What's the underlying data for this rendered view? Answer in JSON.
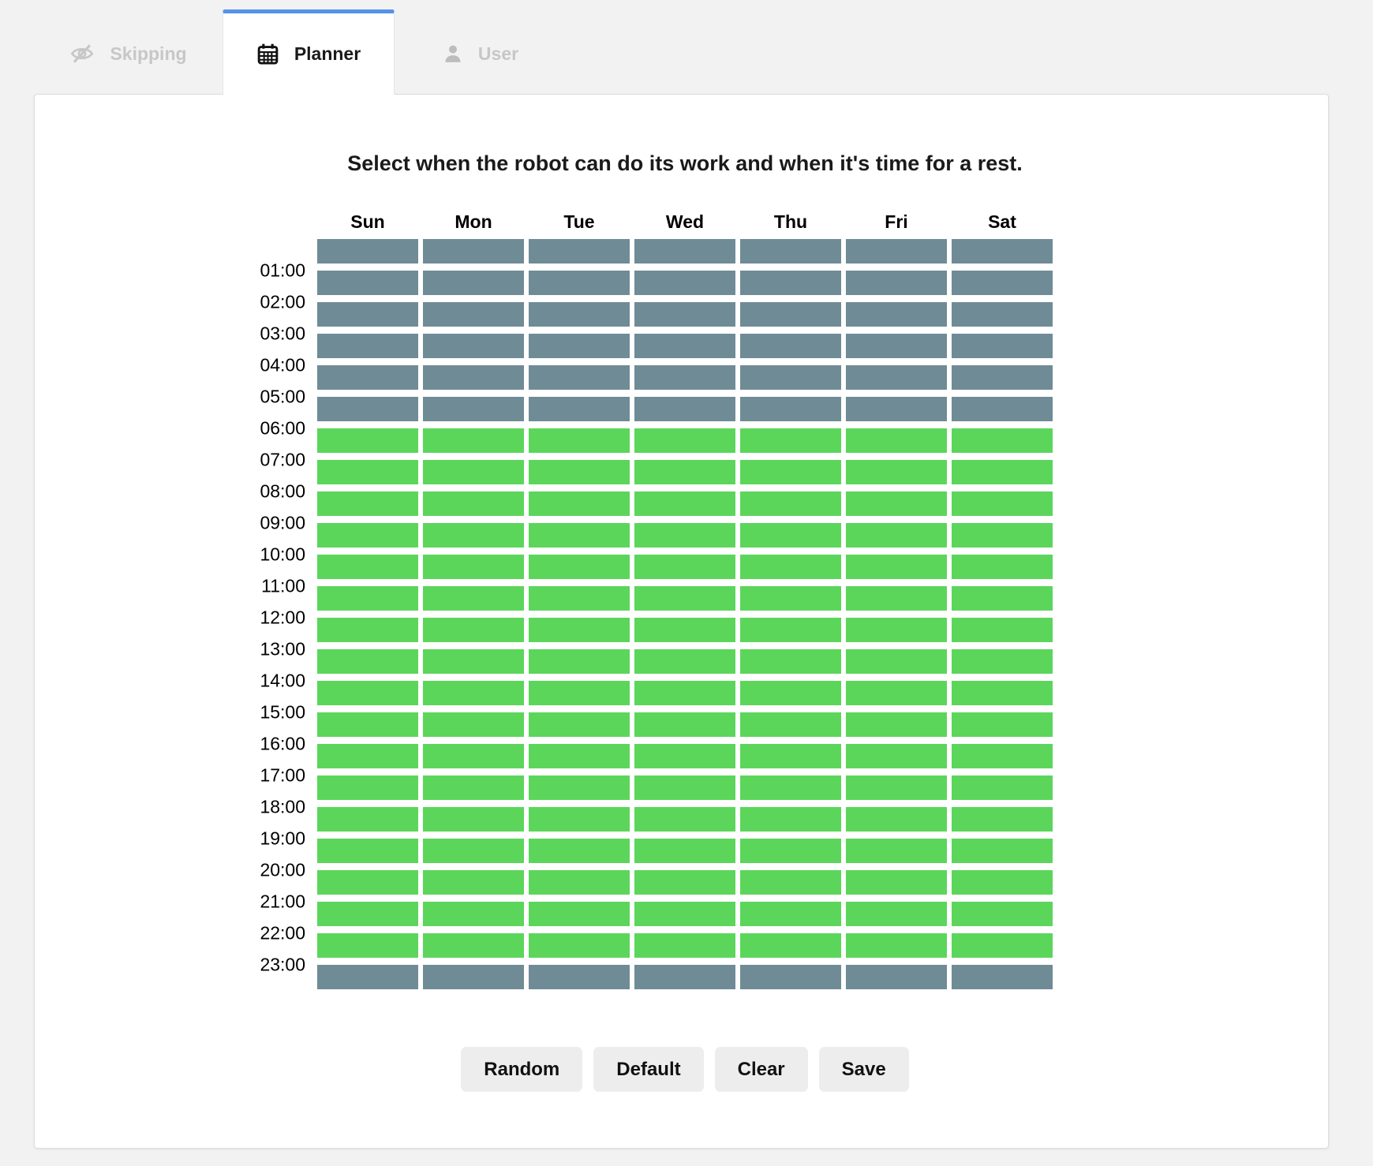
{
  "tabs": [
    {
      "label": "Skipping",
      "icon": "eye-slash-icon",
      "active": false
    },
    {
      "label": "Planner",
      "icon": "calendar-icon",
      "active": true
    },
    {
      "label": "User",
      "icon": "user-icon",
      "active": false
    }
  ],
  "planner": {
    "title": "Select when the robot can do its work and when it's time for a rest.",
    "days": [
      "Sun",
      "Mon",
      "Tue",
      "Wed",
      "Thu",
      "Fri",
      "Sat"
    ],
    "hour_labels": [
      "01:00",
      "02:00",
      "03:00",
      "04:00",
      "05:00",
      "06:00",
      "07:00",
      "08:00",
      "09:00",
      "10:00",
      "11:00",
      "12:00",
      "13:00",
      "14:00",
      "15:00",
      "16:00",
      "17:00",
      "18:00",
      "19:00",
      "20:00",
      "21:00",
      "22:00",
      "23:00"
    ],
    "colors": {
      "work": "#5bd65b",
      "rest": "#6f8b96",
      "active_tab_accent": "#5592e8"
    },
    "row_states": [
      "rest",
      "rest",
      "rest",
      "rest",
      "rest",
      "rest",
      "work",
      "work",
      "work",
      "work",
      "work",
      "work",
      "work",
      "work",
      "work",
      "work",
      "work",
      "work",
      "work",
      "work",
      "work",
      "work",
      "work",
      "rest"
    ],
    "buttons": [
      {
        "label": "Random"
      },
      {
        "label": "Default"
      },
      {
        "label": "Clear"
      },
      {
        "label": "Save"
      }
    ]
  }
}
